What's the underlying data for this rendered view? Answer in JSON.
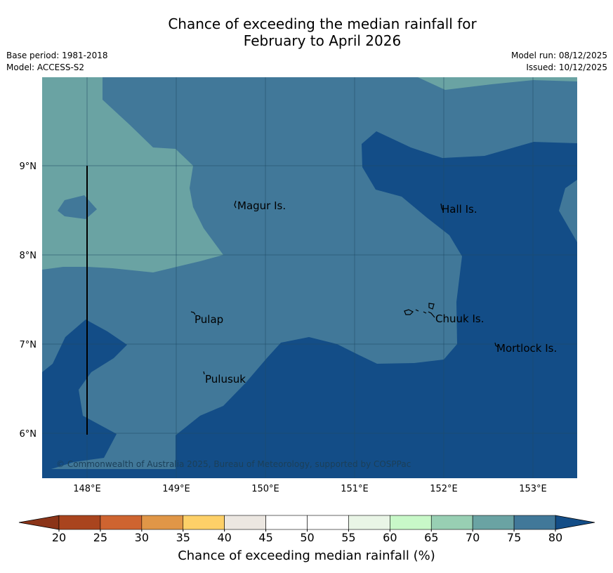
{
  "title": {
    "line1": "Chance of exceeding the median rainfall for",
    "line2": "February to April 2026"
  },
  "meta": {
    "base_period": "Base period: 1981-2018",
    "model": "Model: ACCESS-S2",
    "model_run": "Model run: 08/12/2025",
    "issued": "Issued: 10/12/2025"
  },
  "map": {
    "lat_ticks": [
      "9°N",
      "8°N",
      "7°N",
      "6°N"
    ],
    "lon_ticks": [
      "148°E",
      "149°E",
      "150°E",
      "151°E",
      "152°E",
      "153°E"
    ],
    "places": [
      "Magur Is.",
      "Hall Is.",
      "Pulap",
      "Chuuk Is.",
      "Mortlock Is.",
      "Pulusuk"
    ],
    "copyright": "© Commonwealth of Australia 2025, Bureau of Meteorology, supported by COSPPac"
  },
  "colorbar": {
    "ticks": [
      "20",
      "25",
      "30",
      "35",
      "40",
      "45",
      "50",
      "55",
      "60",
      "65",
      "70",
      "75",
      "80"
    ],
    "colors": [
      "#a9441e",
      "#ce6430",
      "#e09647",
      "#fdd068",
      "#ece7e1",
      "#ffffff",
      "#ffffff",
      "#e9f5e6",
      "#c8f8c8",
      "#98cfb3",
      "#6aa3a3",
      "#417899"
    ],
    "under_color": "#8b3418",
    "over_color": "#134d87",
    "label": "Chance of exceeding median rainfall (%)"
  },
  "colors": {
    "band_70_75": "#6aa3a3",
    "band_75_80": "#417899",
    "band_80_plus": "#134d87"
  }
}
